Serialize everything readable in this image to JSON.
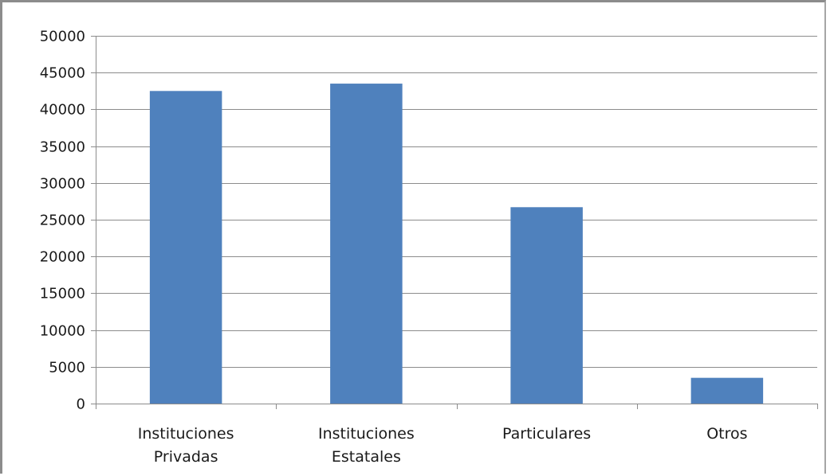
{
  "chart_data": {
    "type": "bar",
    "categories": [
      [
        "Instituciones",
        "Privadas"
      ],
      [
        "Instituciones",
        "Estatales"
      ],
      [
        "Particulares"
      ],
      [
        "Otros"
      ]
    ],
    "values": [
      42500,
      43500,
      26700,
      3500
    ],
    "ylim": [
      0,
      50000
    ],
    "yticks": [
      0,
      5000,
      10000,
      15000,
      20000,
      25000,
      30000,
      35000,
      40000,
      45000,
      50000
    ],
    "grid": true,
    "legend": "none",
    "colors": {
      "bar": "#4F81BD",
      "grid": "#8c8c8c",
      "axis": "#8c8c8c"
    }
  }
}
